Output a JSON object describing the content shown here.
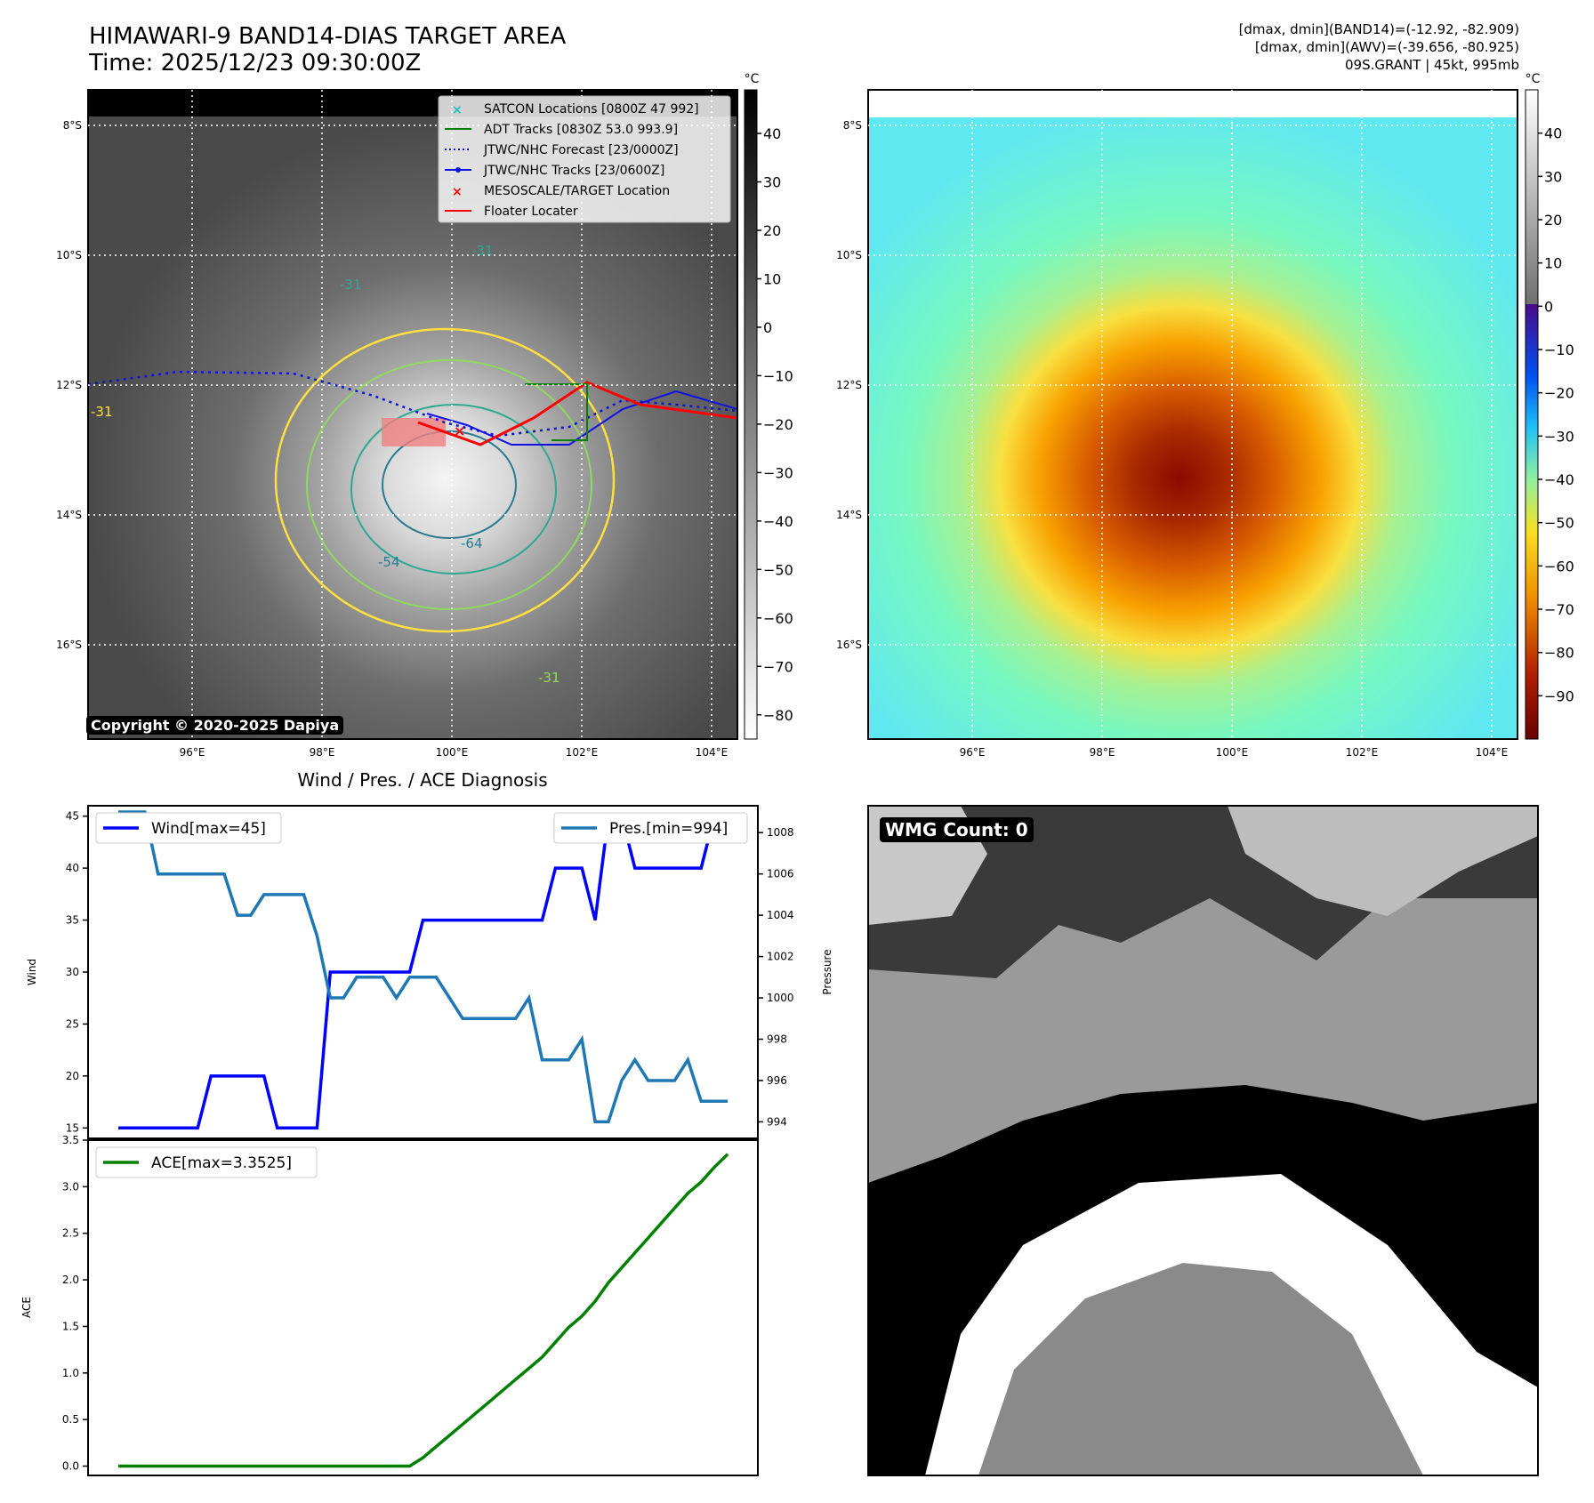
{
  "header": {
    "title": "HIMAWARI-9 BAND14-DIAS TARGET AREA",
    "time": "Time: 2025/12/23 09:30:00Z",
    "info": [
      "[dmax, dmin](BAND14)=(-12.92, -82.909)",
      "[dmax, dmin](AWV)=(-39.656, -80.925)",
      "09S.GRANT | 45kt, 995mb"
    ]
  },
  "map": {
    "lat_labels": [
      "8°S",
      "10°S",
      "12°S",
      "14°S",
      "16°S"
    ],
    "lon_labels": [
      "96°E",
      "98°E",
      "100°E",
      "102°E",
      "104°E"
    ],
    "legend": [
      "SATCON Locations [0800Z 47 992]",
      "ADT Tracks [0830Z 53.0 993.9]",
      "JTWC/NHC Forecast [23/0000Z]",
      "JTWC/NHC Tracks [23/0600Z]",
      "MESOSCALE/TARGET Location",
      "Floater Locater"
    ],
    "contour_labels": [
      "-31",
      "-31",
      "-31",
      "-31",
      "-54",
      "-64"
    ],
    "copyright": "Copyright © 2020-2025 Dapiya",
    "unit": "°C",
    "cbar1_ticks": [
      "40",
      "30",
      "20",
      "10",
      "0",
      "−10",
      "−20",
      "−30",
      "−40",
      "−50",
      "−60",
      "−70",
      "−80"
    ],
    "cbar2_ticks": [
      "40",
      "30",
      "20",
      "10",
      "0",
      "−10",
      "−20",
      "−30",
      "−40",
      "−50",
      "−60",
      "−70",
      "−80",
      "−90"
    ],
    "colors": {
      "track": "#1010e0",
      "adt": "#008000",
      "floater": "#ff0000",
      "satcon": "#20c0c0"
    }
  },
  "wmg": {
    "label": "WMG Count: 0"
  },
  "chart_data": [
    {
      "type": "line",
      "title": "Wind / Pres. / ACE Diagnosis",
      "ylabel": "Wind",
      "y2label": "Pressure",
      "ylim": [
        14,
        46
      ],
      "y2lim": [
        993.2,
        1009.3
      ],
      "yticks": [
        "15",
        "20",
        "25",
        "30",
        "35",
        "40",
        "45"
      ],
      "y2ticks": [
        "994",
        "996",
        "998",
        "1000",
        "1002",
        "1004",
        "1006",
        "1008"
      ],
      "series": [
        {
          "name": "Wind[max=45]",
          "axis": "left",
          "color": "#0000ff",
          "x": [
            0,
            1,
            2,
            3,
            4,
            5,
            6,
            7,
            8,
            9,
            10,
            11,
            12,
            13,
            14,
            15,
            16,
            17,
            18,
            19,
            20,
            21,
            22,
            23,
            24,
            25,
            26,
            27,
            28,
            29,
            30,
            31,
            32,
            33,
            34,
            35,
            36,
            37,
            38,
            39,
            40,
            41,
            42,
            43,
            44,
            45,
            46
          ],
          "values": [
            15,
            15,
            15,
            15,
            15,
            15,
            15,
            20,
            20,
            20,
            20,
            20,
            15,
            15,
            15,
            15,
            30,
            30,
            30,
            30,
            30,
            30,
            30,
            35,
            35,
            35,
            35,
            35,
            35,
            35,
            35,
            35,
            35,
            40,
            40,
            40,
            35,
            45,
            45,
            40,
            40,
            40,
            40,
            40,
            40,
            45,
            45
          ]
        },
        {
          "name": "Pres.[min=994]",
          "axis": "right",
          "color": "#1f77b4",
          "x": [
            0,
            1,
            2,
            3,
            4,
            5,
            6,
            7,
            8,
            9,
            10,
            11,
            12,
            13,
            14,
            15,
            16,
            17,
            18,
            19,
            20,
            21,
            22,
            23,
            24,
            25,
            26,
            27,
            28,
            29,
            30,
            31,
            32,
            33,
            34,
            35,
            36,
            37,
            38,
            39,
            40,
            41,
            42,
            43,
            44,
            45,
            46
          ],
          "values": [
            1009,
            1009,
            1009,
            1006,
            1006,
            1006,
            1006,
            1006,
            1006,
            1004,
            1004,
            1005,
            1005,
            1005,
            1005,
            1003,
            1000,
            1000,
            1001,
            1001,
            1001,
            1000,
            1001,
            1001,
            1001,
            1000,
            999,
            999,
            999,
            999,
            999,
            1000,
            997,
            997,
            997,
            998,
            994,
            994,
            996,
            997,
            996,
            996,
            996,
            997,
            995,
            995,
            995
          ]
        }
      ]
    },
    {
      "type": "line",
      "ylabel": "ACE",
      "ylim": [
        -0.1,
        3.5
      ],
      "yticks": [
        "0.0",
        "0.5",
        "1.0",
        "1.5",
        "2.0",
        "2.5",
        "3.0",
        "3.5"
      ],
      "series": [
        {
          "name": "ACE[max=3.3525]",
          "color": "#008000",
          "x": [
            0,
            1,
            2,
            3,
            4,
            5,
            6,
            7,
            8,
            9,
            10,
            11,
            12,
            13,
            14,
            15,
            16,
            17,
            18,
            19,
            20,
            21,
            22,
            23,
            24,
            25,
            26,
            27,
            28,
            29,
            30,
            31,
            32,
            33,
            34,
            35,
            36,
            37,
            38,
            39,
            40,
            41,
            42,
            43,
            44,
            45,
            46
          ],
          "values": [
            0,
            0,
            0,
            0,
            0,
            0,
            0,
            0,
            0,
            0,
            0,
            0,
            0,
            0,
            0,
            0,
            0,
            0,
            0,
            0,
            0,
            0,
            0,
            0.09,
            0.21,
            0.33,
            0.45,
            0.57,
            0.69,
            0.81,
            0.93,
            1.05,
            1.17,
            1.33,
            1.49,
            1.61,
            1.77,
            1.97,
            2.13,
            2.29,
            2.45,
            2.61,
            2.77,
            2.93,
            3.05,
            3.21,
            3.35
          ]
        }
      ]
    }
  ]
}
